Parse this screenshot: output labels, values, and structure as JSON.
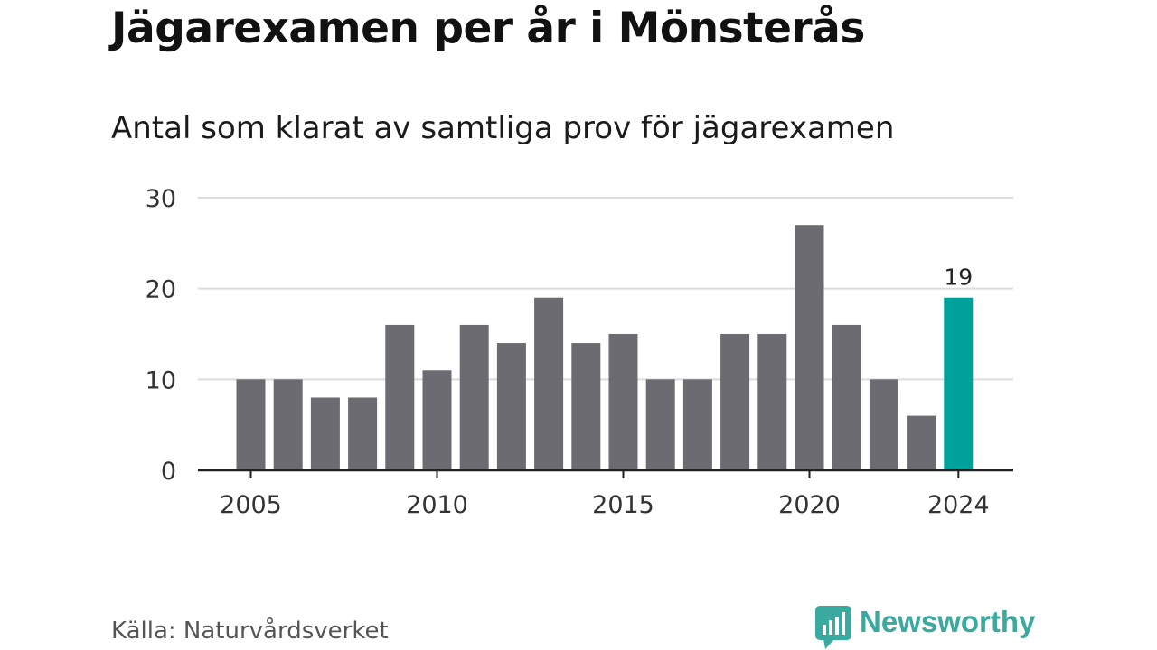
{
  "title": "Jägarexamen per år i Mönsterås",
  "subtitle": "Antal som klarat av samtliga prov för jägarexamen",
  "source": "Källa: Naturvårdsverket",
  "brand": {
    "name": "Newsworthy",
    "icon": "newsworthy-logo-icon",
    "color": "#3aa99f"
  },
  "colors": {
    "bar": "#6c6b71",
    "highlight": "#00a19b",
    "grid": "#dcdcdc",
    "axis": "#222222"
  },
  "chart_data": {
    "type": "bar",
    "categories": [
      "2005",
      "2006",
      "2007",
      "2008",
      "2009",
      "2010",
      "2011",
      "2012",
      "2013",
      "2014",
      "2015",
      "2016",
      "2017",
      "2018",
      "2019",
      "2020",
      "2021",
      "2022",
      "2023",
      "2024"
    ],
    "values": [
      10,
      10,
      8,
      8,
      16,
      11,
      16,
      14,
      19,
      14,
      15,
      10,
      10,
      15,
      15,
      27,
      16,
      10,
      6,
      19
    ],
    "x_tick_labels": [
      "2005",
      "2010",
      "2015",
      "2020",
      "2024"
    ],
    "y_ticks": [
      "0",
      "10",
      "20",
      "30"
    ],
    "ylim": [
      0,
      30
    ],
    "grid": true,
    "highlight": {
      "category": "2024",
      "label": "19"
    },
    "xlabel": "",
    "ylabel": ""
  }
}
